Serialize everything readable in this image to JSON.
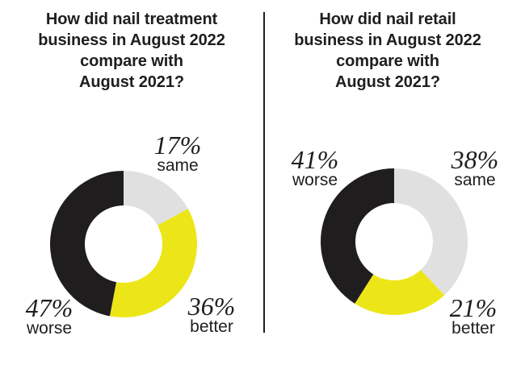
{
  "colors": {
    "worse": "#1f1d1d",
    "better": "#ece619",
    "same": "#e0e0e0"
  },
  "chart_data": [
    {
      "type": "pie",
      "title": "How did nail treatment business in August 2022 compare with August 2021?",
      "title_lines": [
        "How did nail treatment",
        "business in August 2022",
        "compare with",
        "August 2021?"
      ],
      "labels": [
        "same",
        "better",
        "worse"
      ],
      "values": [
        17,
        36,
        47
      ],
      "value_labels": [
        "17%",
        "36%",
        "47%"
      ],
      "legend": "none"
    },
    {
      "type": "pie",
      "title": "How did nail retail business in August 2022 compare with August 2021?",
      "title_lines": [
        "How did nail retail",
        "business in August 2022",
        "compare with",
        "August 2021?"
      ],
      "labels": [
        "same",
        "better",
        "worse"
      ],
      "values": [
        38,
        21,
        41
      ],
      "value_labels": [
        "38%",
        "21%",
        "41%"
      ],
      "legend": "none"
    }
  ]
}
